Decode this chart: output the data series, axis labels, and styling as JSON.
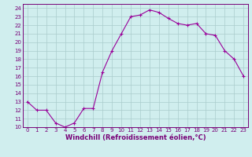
{
  "x": [
    0,
    1,
    2,
    3,
    4,
    5,
    6,
    7,
    8,
    9,
    10,
    11,
    12,
    13,
    14,
    15,
    16,
    17,
    18,
    19,
    20,
    21,
    22,
    23
  ],
  "y": [
    13,
    12,
    12,
    10.5,
    10,
    10.5,
    12.2,
    12.2,
    16.5,
    19,
    21,
    23,
    23.2,
    23.8,
    23.5,
    22.8,
    22.2,
    22,
    22.2,
    21,
    20.8,
    19,
    18,
    16
  ],
  "line_color": "#990099",
  "marker": "+",
  "markersize": 3,
  "linewidth": 0.8,
  "bg_color": "#d0eeee",
  "grid_color": "#aacccc",
  "xlabel": "Windchill (Refroidissement éolien,°C)",
  "xlabel_fontsize": 6,
  "ylim": [
    10,
    24.5
  ],
  "xlim": [
    -0.5,
    23.5
  ],
  "yticks": [
    10,
    11,
    12,
    13,
    14,
    15,
    16,
    17,
    18,
    19,
    20,
    21,
    22,
    23,
    24
  ],
  "xticks": [
    0,
    1,
    2,
    3,
    4,
    5,
    6,
    7,
    8,
    9,
    10,
    11,
    12,
    13,
    14,
    15,
    16,
    17,
    18,
    19,
    20,
    21,
    22,
    23
  ],
  "tick_fontsize": 5,
  "tick_color": "#770077"
}
